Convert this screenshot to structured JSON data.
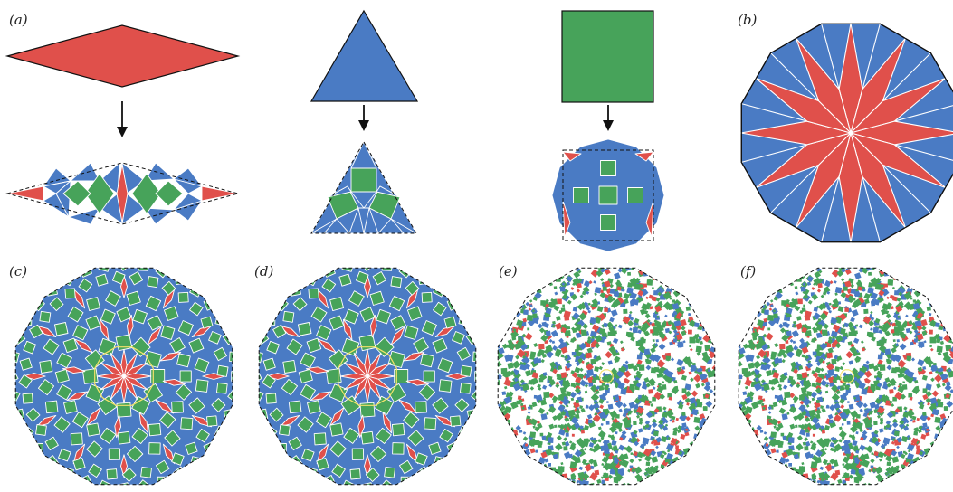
{
  "panels": [
    {
      "key": "a",
      "label": "(a)"
    },
    {
      "key": "b",
      "label": "(b)"
    },
    {
      "key": "c",
      "label": "(c)"
    },
    {
      "key": "d",
      "label": "(d)"
    },
    {
      "key": "e",
      "label": "(e)"
    },
    {
      "key": "f",
      "label": "(f)"
    }
  ],
  "colors": {
    "rhombus": "#e0504b",
    "triangle": "#4a7bc4",
    "square": "#47a35a",
    "outline": "#111111",
    "dashed": "#111111",
    "highlight": "#f3e36a",
    "white": "#ffffff"
  },
  "shapes": {
    "prototiles": [
      "rhombus",
      "triangle",
      "square"
    ],
    "tiling_symmetry": 12
  }
}
